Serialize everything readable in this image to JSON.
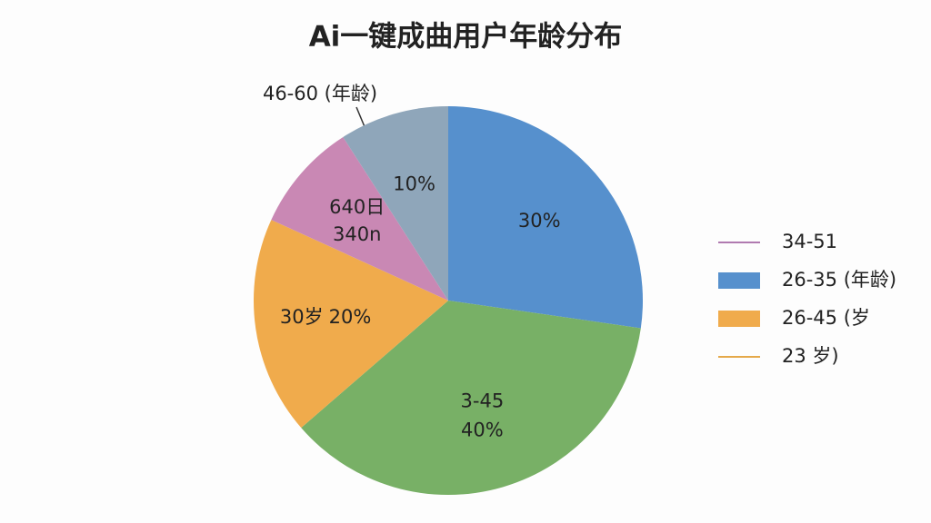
{
  "chart_data": {
    "type": "pie",
    "title": "Ai一键成曲用户年龄分布",
    "categories": [
      null,
      "3-45",
      "30岁",
      [
        "640日",
        "340n"
      ],
      null
    ],
    "values": [
      30,
      40,
      20,
      10,
      10
    ],
    "value_labels": [
      "30%",
      "40%",
      "20%",
      null,
      "10%"
    ],
    "colors": [
      "#5690cd",
      "#78b066",
      "#f0ab4c",
      "#c988b4",
      "#8fa6ba"
    ],
    "outer_label": "46-60 (年龄)",
    "legend": [
      {
        "label": "34-51",
        "color": "#b07ab0",
        "marker": "line"
      },
      {
        "label": "26-35 (年龄)",
        "color": "#5690cd",
        "marker": "box"
      },
      {
        "label": "26-45 (岁",
        "color": "#f0ab4c",
        "marker": "box"
      },
      {
        "label": "23 岁)",
        "color": "#e5a94a",
        "marker": "line"
      }
    ]
  }
}
